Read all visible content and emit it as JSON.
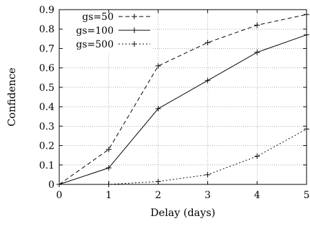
{
  "chart_data": {
    "type": "line",
    "title": "",
    "xlabel": "Delay (days)",
    "ylabel": "Confidence",
    "xlim": [
      0,
      5
    ],
    "ylim": [
      0,
      0.9
    ],
    "x_ticks": [
      "0",
      "1",
      "2",
      "3",
      "4",
      "5"
    ],
    "y_ticks": [
      "0",
      "0.1",
      "0.2",
      "0.3",
      "0.4",
      "0.5",
      "0.6",
      "0.7",
      "0.8",
      "0.9"
    ],
    "grid": true,
    "legend_position": "top-left",
    "x": [
      0,
      1,
      2,
      3,
      4,
      5
    ],
    "series": [
      {
        "name": "gs=50",
        "values": [
          0,
          0.18,
          0.61,
          0.73,
          0.82,
          0.875
        ],
        "dash": "dashed",
        "color": "#000000"
      },
      {
        "name": "gs=100",
        "values": [
          0,
          0.085,
          0.39,
          0.535,
          0.68,
          0.77
        ],
        "dash": "solid",
        "color": "#000000"
      },
      {
        "name": "gs=500",
        "values": [
          0,
          0.0,
          0.015,
          0.05,
          0.145,
          0.285
        ],
        "dash": "dotted",
        "color": "#000000"
      }
    ]
  }
}
